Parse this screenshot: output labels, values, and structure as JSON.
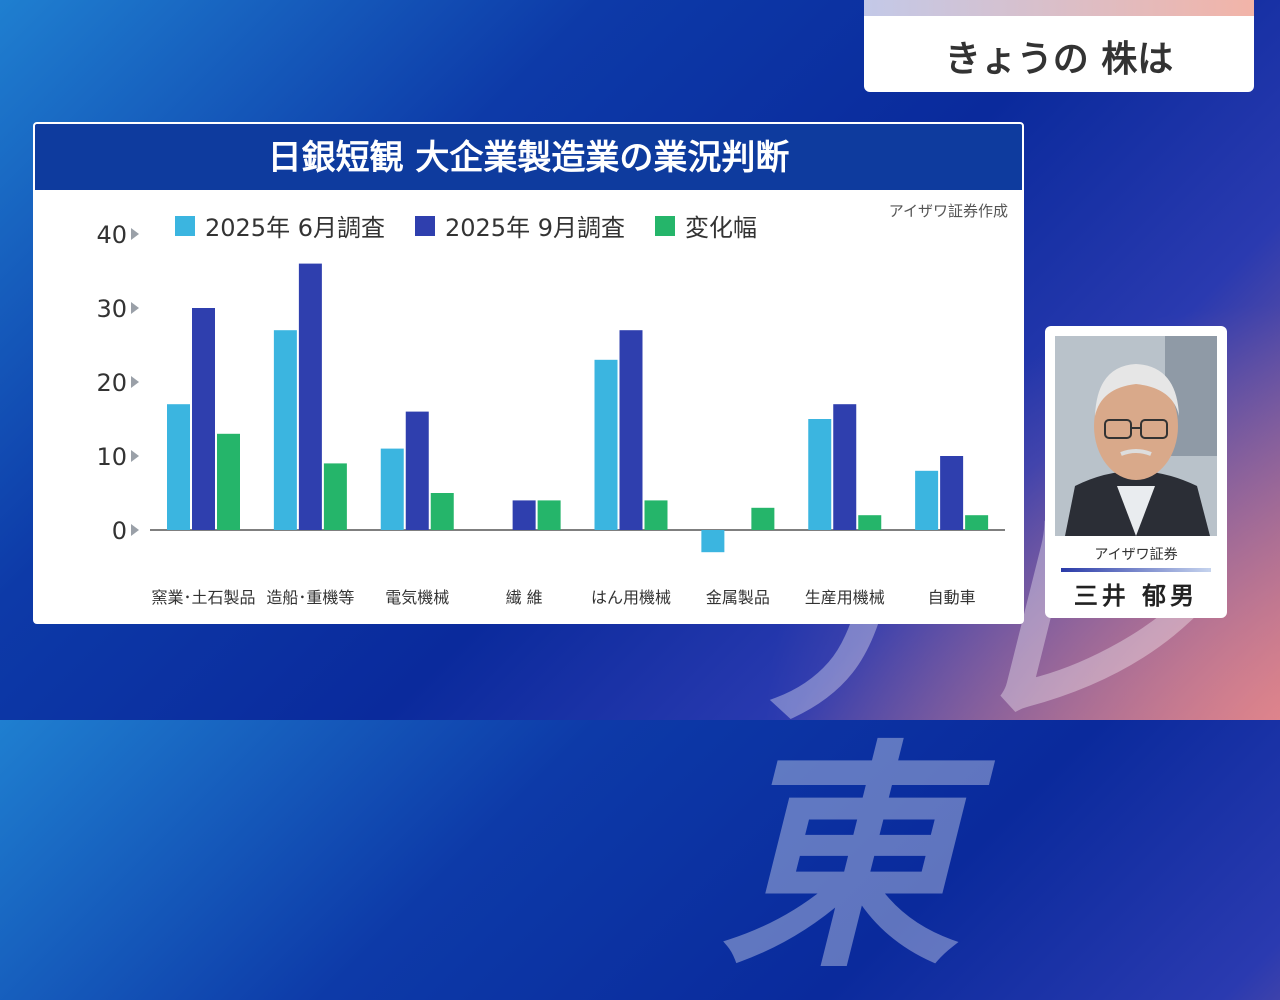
{
  "corner_label": "きょうの 株は",
  "watermark": "テレ東",
  "chart_data": {
    "type": "bar",
    "title": "日銀短観 大企業製造業の業況判断",
    "source": "アイザワ証券作成",
    "categories": [
      "窯業･土石製品",
      "造船･重機等",
      "電気機械",
      "繊 維",
      "はん用機械",
      "金属製品",
      "生産用機械",
      "自動車"
    ],
    "series": [
      {
        "name": "2025年 6月調査",
        "color": "#3bb5e0",
        "values": [
          17,
          27,
          11,
          0,
          23,
          -3,
          15,
          8
        ]
      },
      {
        "name": "2025年 9月調査",
        "color": "#2f3fae",
        "values": [
          30,
          36,
          16,
          4,
          27,
          0,
          17,
          10
        ]
      },
      {
        "name": "変化幅",
        "color": "#25b56a",
        "values": [
          13,
          9,
          5,
          4,
          4,
          3,
          2,
          2
        ]
      }
    ],
    "y_ticks": [
      0,
      10,
      20,
      30,
      40
    ],
    "ylim": [
      -4,
      40
    ],
    "legend_position": "top",
    "grid": false
  },
  "presenter": {
    "organization": "アイザワ証券",
    "name": "三井 郁男"
  }
}
